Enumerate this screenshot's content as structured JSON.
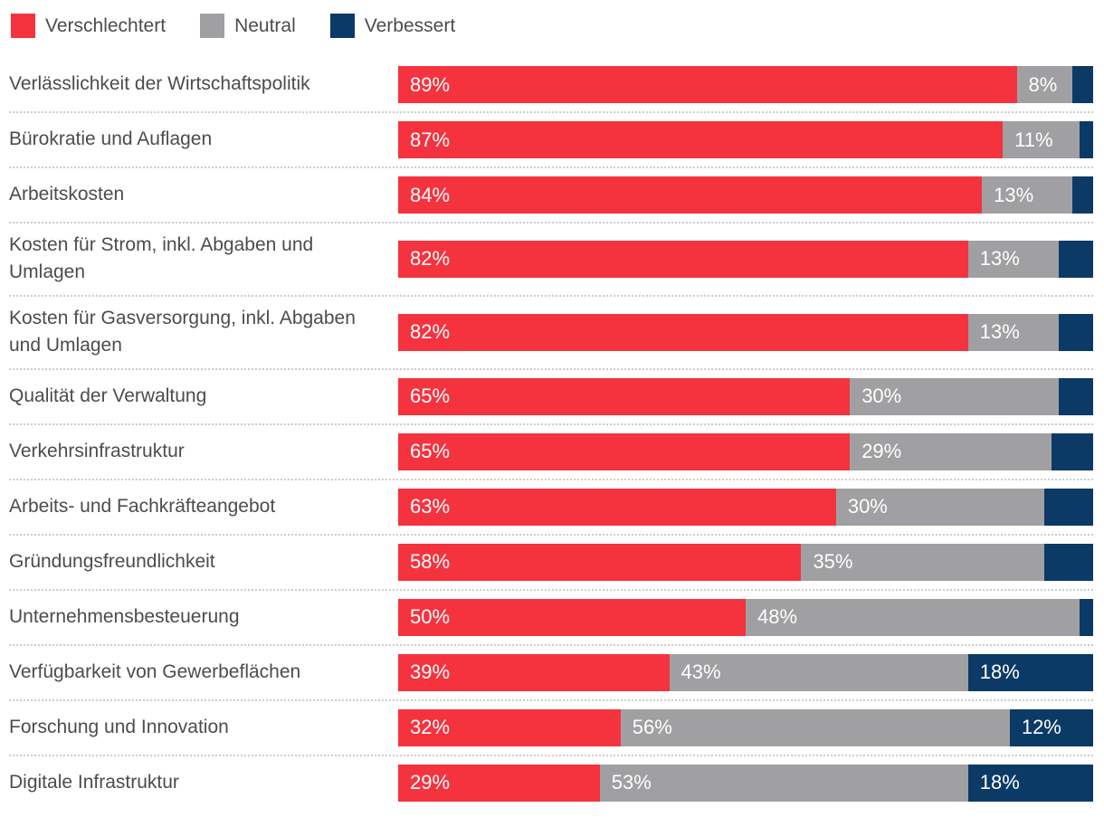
{
  "legend": {
    "items": [
      {
        "key": "verschlechtert",
        "label": "Verschlechtert",
        "color": "#f5333f"
      },
      {
        "key": "neutral",
        "label": "Neutral",
        "color": "#a0a0a2"
      },
      {
        "key": "verbessert",
        "label": "Verbessert",
        "color": "#0c3a67"
      }
    ]
  },
  "chart_data": {
    "type": "bar",
    "orientation": "horizontal",
    "stacked": true,
    "unit": "percent",
    "xlim": [
      0,
      100
    ],
    "grid": false,
    "legend_position": "top-left",
    "series_names": [
      "Verschlechtert",
      "Neutral",
      "Verbessert"
    ],
    "series_colors": [
      "#f5333f",
      "#a0a0a2",
      "#0c3a67"
    ],
    "rows": [
      {
        "label": "Verlässlichkeit der Wirtschaftspolitik",
        "values": [
          89,
          8,
          3
        ],
        "value_labels": [
          "89%",
          "8%",
          ""
        ]
      },
      {
        "label": "Bürokratie und Auflagen",
        "values": [
          87,
          11,
          2
        ],
        "value_labels": [
          "87%",
          "11%",
          ""
        ]
      },
      {
        "label": "Arbeitskosten",
        "values": [
          84,
          13,
          3
        ],
        "value_labels": [
          "84%",
          "13%",
          ""
        ]
      },
      {
        "label": "Kosten für Strom, inkl. Abgaben und Umlagen",
        "values": [
          82,
          13,
          5
        ],
        "value_labels": [
          "82%",
          "13%",
          ""
        ]
      },
      {
        "label": "Kosten für Gasversorgung, inkl. Abgaben und Umlagen",
        "values": [
          82,
          13,
          5
        ],
        "value_labels": [
          "82%",
          "13%",
          ""
        ]
      },
      {
        "label": "Qualität der Verwaltung",
        "values": [
          65,
          30,
          5
        ],
        "value_labels": [
          "65%",
          "30%",
          ""
        ]
      },
      {
        "label": "Verkehrsinfrastruktur",
        "values": [
          65,
          29,
          6
        ],
        "value_labels": [
          "65%",
          "29%",
          ""
        ]
      },
      {
        "label": "Arbeits- und Fachkräfteangebot",
        "values": [
          63,
          30,
          7
        ],
        "value_labels": [
          "63%",
          "30%",
          ""
        ]
      },
      {
        "label": "Gründungsfreundlichkeit",
        "values": [
          58,
          35,
          7
        ],
        "value_labels": [
          "58%",
          "35%",
          ""
        ]
      },
      {
        "label": "Unternehmensbesteuerung",
        "values": [
          50,
          48,
          2
        ],
        "value_labels": [
          "50%",
          "48%",
          ""
        ]
      },
      {
        "label": "Verfügbarkeit von Gewerbeflächen",
        "values": [
          39,
          43,
          18
        ],
        "value_labels": [
          "39%",
          "43%",
          "18%"
        ]
      },
      {
        "label": "Forschung und Innovation",
        "values": [
          32,
          56,
          12
        ],
        "value_labels": [
          "32%",
          "56%",
          "12%"
        ]
      },
      {
        "label": "Digitale Infrastruktur",
        "values": [
          29,
          53,
          18
        ],
        "value_labels": [
          "29%",
          "53%",
          "18%"
        ]
      }
    ]
  }
}
